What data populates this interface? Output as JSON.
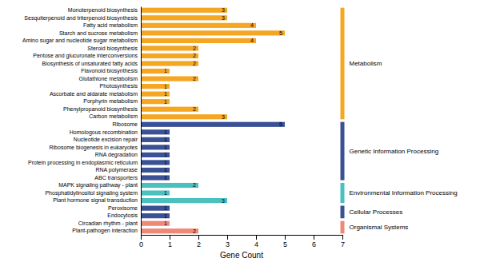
{
  "chart_data": {
    "type": "bar",
    "orientation": "horizontal",
    "categories": [
      "Monoterpenoid biosynthesis",
      "Sesquiterpenoid and triterpenoid biosynthesis",
      "Fatty acid metabolism",
      "Starch and sucrose metabolism",
      "Amino sugar and nucleotide sugar metabolism",
      "Steroid biosynthesis",
      "Pentose and glucuronate interconversions",
      "Biosynthesis of unsaturated fatty acids",
      "Flavonoid biosynthesis",
      "Glutathione metabolism",
      "Photosynthesis",
      "Ascorbate and aldarate metabolism",
      "Porphyrin metabolism",
      "Phenylpropanoid biosynthesis",
      "Carbon metabolism",
      "Ribosome",
      "Homologous recombination",
      "Nucleotide excision repair",
      "Ribosome biogenesis in eukaryotes",
      "RNA degradation",
      "Protein processing in endoplasmic reticulum",
      "RNA polymerase",
      "ABC transporters",
      "MAPK signaling pathway - plant",
      "Phosphatidylinositol signaling system",
      "Plant hormone signal transduction",
      "Peroxisome",
      "Endocytosis",
      "Circadian rhythm - plant",
      "Plant-pathogen interaction"
    ],
    "values": [
      3,
      3,
      4,
      5,
      4,
      2,
      2,
      2,
      1,
      2,
      1,
      1,
      1,
      2,
      3,
      5,
      1,
      1,
      1,
      1,
      1,
      1,
      1,
      2,
      1,
      3,
      1,
      1,
      1,
      2
    ],
    "colors": [
      "#F5A623",
      "#F5A623",
      "#F5A623",
      "#F5A623",
      "#F5A623",
      "#F5A623",
      "#F5A623",
      "#F5A623",
      "#F5A623",
      "#F5A623",
      "#F5A623",
      "#F5A623",
      "#F5A623",
      "#F5A623",
      "#F5A623",
      "#3B5196",
      "#3B5196",
      "#3B5196",
      "#3B5196",
      "#3B5196",
      "#3B5196",
      "#3B5196",
      "#3B5196",
      "#4CBFBF",
      "#4CBFBF",
      "#4CBFBF",
      "#3B5196",
      "#3B5196",
      "#F08878",
      "#F08878"
    ],
    "data_labels": true,
    "xlabel": "Gene Count",
    "xlim": [
      0,
      7
    ],
    "xticks": [
      0,
      1,
      2,
      3,
      4,
      5,
      6,
      7
    ],
    "grid": false,
    "groups": [
      {
        "label": "Metabolism",
        "color": "#F5A623",
        "from": "Monoterpenoid biosynthesis",
        "to": "Carbon metabolism"
      },
      {
        "label": "Genetic Information Processing",
        "color": "#3B5196",
        "from": "Ribosome",
        "to": "ABC transporters"
      },
      {
        "label": "Environmental Information Processing",
        "color": "#4CBFBF",
        "from": "MAPK signaling pathway - plant",
        "to": "Plant hormone signal transduction"
      },
      {
        "label": "Cellular Processes",
        "color": "#3B5196",
        "from": "Peroxisome",
        "to": "Endocytosis"
      },
      {
        "label": "Organismal Systems",
        "color": "#F08878",
        "from": "Circadian rhythm - plant",
        "to": "Plant-pathogen interaction"
      }
    ]
  }
}
